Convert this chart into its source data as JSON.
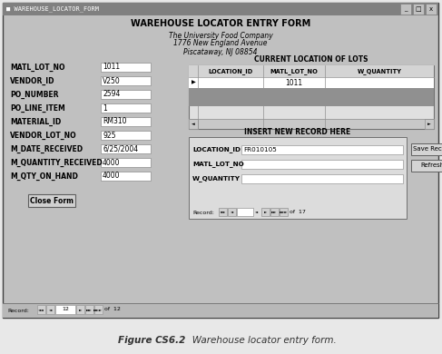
{
  "title_bar": "WAREHOUSE_LOCATOR_FORM",
  "form_title": "WAREHOUSE LOCATOR ENTRY FORM",
  "company_line1": "The University Food Company",
  "company_line2": "1776 New England Avenue",
  "company_line3": "Piscataway, NJ 08854",
  "fields_left": [
    [
      "MATL_LOT_NO",
      "1011"
    ],
    [
      "VENDOR_ID",
      "V250"
    ],
    [
      "PO_NUMBER",
      "2594"
    ],
    [
      "PO_LINE_ITEM",
      "1"
    ],
    [
      "MATERIAL_ID",
      "RM310"
    ],
    [
      "VENDOR_LOT_NO",
      "925"
    ],
    [
      "M_DATE_RECEIVED",
      "6/25/2004"
    ],
    [
      "M_QUANTITY_RECEIVED",
      "4000"
    ],
    [
      "M_QTY_ON_HAND",
      "4000"
    ]
  ],
  "current_loc_label": "CURRENT LOCATION OF LOTS",
  "table_headers": [
    "LOCATION_ID",
    "MATL_LOT_NO",
    "W_QUANTITY"
  ],
  "table_row1_data": "1011",
  "insert_label": "INSERT NEW RECORD HERE",
  "insert_fields": [
    [
      "LOCATION_ID",
      "FR010105"
    ],
    [
      "MATL_LOT_NO",
      ""
    ],
    [
      "W_QUANTITY",
      ""
    ]
  ],
  "btn_close": "Close Form",
  "btn_save": "Save Record",
  "btn_refresh": "Refresh",
  "bg_color": "#c0c0c0",
  "field_bg": "#ffffff",
  "title_bar_bg": "#888888",
  "insert_box_bg": "#dcdcdc",
  "figure_caption_bold": "Figure CS6.2",
  "figure_caption_normal": "   Warehouse locator entry form."
}
